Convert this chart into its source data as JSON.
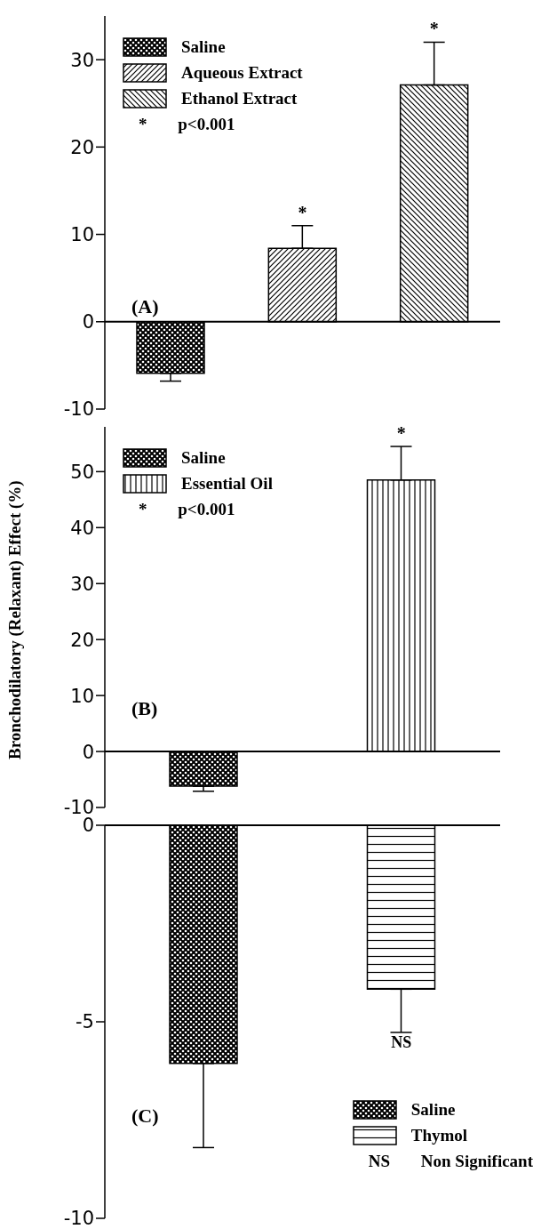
{
  "chart_data": [
    {
      "type": "bar",
      "categories": [
        null,
        null,
        null
      ],
      "ylim": [
        -10,
        35
      ],
      "yticks": [
        -10,
        0,
        10,
        20,
        30
      ],
      "tick_labels": "y",
      "legend": "top left",
      "annotations": [
        "(A)",
        "* p<0.001"
      ],
      "series": [
        {
          "name": "Saline",
          "color": "#000000",
          "values": [
            -5.9,
            null,
            null
          ],
          "errors": [
            [
              -6.8,
              -5.9
            ],
            null,
            null
          ],
          "value_labels": [
            null,
            null,
            null
          ]
        },
        {
          "name": "Aqueous Extract",
          "color": "#000000",
          "values": [
            null,
            8.4,
            null
          ],
          "errors": [
            null,
            [
              8.4,
              11.0
            ],
            null
          ],
          "value_labels": [
            null,
            "*",
            null
          ]
        },
        {
          "name": "Ethanol Extract",
          "color": "#000000",
          "values": [
            null,
            null,
            27.1
          ],
          "errors": [
            null,
            null,
            [
              27.1,
              32.0
            ]
          ],
          "value_labels": [
            null,
            null,
            "*"
          ]
        }
      ]
    },
    {
      "type": "bar",
      "categories": [
        null,
        null
      ],
      "ylim": [
        -10,
        58
      ],
      "yticks": [
        -10,
        0,
        10,
        20,
        30,
        40,
        50
      ],
      "tick_labels": "y",
      "legend": "top left",
      "ylabel": "Bronchodilatory (Relaxant) Effect (%)",
      "annotations": [
        "(B)",
        "* p<0.001"
      ],
      "series": [
        {
          "name": "Saline",
          "color": "#000000",
          "values": [
            -6.2,
            null
          ],
          "errors": [
            [
              -7.1,
              -6.2
            ],
            null
          ],
          "value_labels": [
            null,
            null
          ]
        },
        {
          "name": "Essential Oil",
          "color": "#000000",
          "values": [
            null,
            48.5
          ],
          "errors": [
            null,
            [
              48.5,
              54.5
            ]
          ],
          "value_labels": [
            null,
            "*"
          ]
        }
      ]
    },
    {
      "type": "bar",
      "categories": [
        null,
        null
      ],
      "ylim": [
        -10,
        0
      ],
      "yticks": [
        -10,
        -5,
        0
      ],
      "tick_labels": "y",
      "legend": "bottom right",
      "annotations": [
        "(C)",
        "NS Non Significant"
      ],
      "series": [
        {
          "name": "Saline",
          "color": "#000000",
          "values": [
            -6.06,
            null
          ],
          "errors": [
            [
              -8.2,
              -6.06
            ],
            null
          ],
          "value_labels": [
            null,
            null
          ]
        },
        {
          "name": "Thymol",
          "color": "#000000",
          "values": [
            null,
            -4.17
          ],
          "errors": [
            null,
            [
              -5.27,
              -4.17
            ]
          ],
          "value_labels": [
            null,
            "NS"
          ]
        }
      ]
    }
  ]
}
